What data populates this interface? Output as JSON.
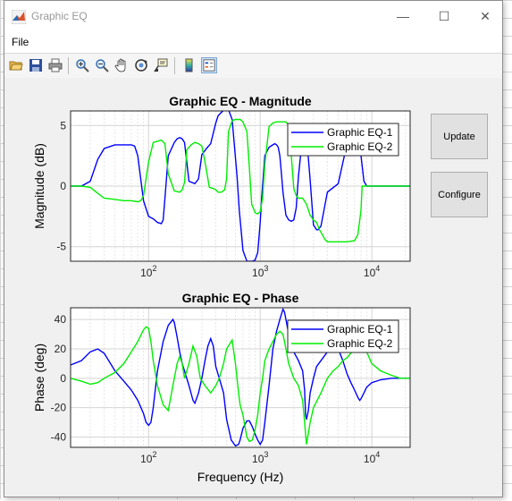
{
  "window": {
    "title": "Graphic EQ",
    "minimize": "—",
    "maximize": "☐",
    "close": "✕"
  },
  "menu": {
    "file": "File"
  },
  "toolbar": {
    "icons": [
      "open-icon",
      "save-icon",
      "print-icon",
      "zoom-in-icon",
      "zoom-out-icon",
      "pan-icon",
      "rotate-icon",
      "data-cursor-icon",
      "colorbar-icon",
      "legend-icon"
    ]
  },
  "buttons": {
    "update": "Update",
    "configure": "Configure"
  },
  "colors": {
    "series1": "#0000ff",
    "series2": "#00ee00"
  },
  "chart_data": [
    {
      "type": "line",
      "title": "Graphic EQ - Magnitude",
      "xlabel": "",
      "ylabel": "Magnitude (dB)",
      "xscale": "log",
      "xlim": [
        20,
        22050
      ],
      "ylim": [
        -6.2,
        6.2
      ],
      "xticks": [
        {
          "v": 100,
          "base": "10",
          "exp": "2"
        },
        {
          "v": 1000,
          "base": "10",
          "exp": "3"
        },
        {
          "v": 10000,
          "base": "10",
          "exp": "4"
        }
      ],
      "yticks": [
        {
          "v": 5,
          "label": "5"
        },
        {
          "v": 0,
          "label": "0"
        },
        {
          "v": -5,
          "label": "-5"
        }
      ],
      "grid": true,
      "legend": "top-right",
      "series": [
        {
          "name": "Graphic EQ-1",
          "x": [
            20,
            25,
            30,
            35,
            40,
            50,
            60,
            70,
            75,
            80,
            90,
            100,
            105,
            110,
            120,
            130,
            135,
            140,
            150,
            170,
            180,
            190,
            200,
            210,
            230,
            260,
            280,
            300,
            330,
            360,
            400,
            420,
            450,
            480,
            500,
            520,
            560,
            620,
            650,
            700,
            760,
            800,
            850,
            900,
            950,
            1000,
            1030,
            1100,
            1200,
            1300,
            1350,
            1400,
            1450,
            1500,
            1550,
            1600,
            1700,
            1800,
            1900,
            2000,
            2100,
            2200,
            2400,
            2500,
            2600,
            2800,
            3000,
            3200,
            3300,
            3500,
            4000,
            5000,
            6000,
            7000,
            7500,
            8000,
            8500,
            9000,
            10000,
            12000,
            15000,
            22050
          ],
          "y": [
            0,
            0,
            0.4,
            2.2,
            3.1,
            3.4,
            3.4,
            3.4,
            3.3,
            2.5,
            -1.2,
            -2.5,
            -2.6,
            -2.7,
            -3.0,
            -3.1,
            -2.8,
            -1.0,
            2.5,
            3.6,
            3.9,
            4.0,
            3.9,
            3.6,
            0.4,
            0.2,
            0.6,
            2.6,
            3.1,
            3.5,
            5.2,
            5.8,
            6.1,
            6.3,
            6.3,
            6.3,
            5.5,
            0.8,
            -2.0,
            -5.3,
            -6.2,
            -6.2,
            -6.2,
            -6.1,
            -5.5,
            -3.0,
            -1.0,
            2.5,
            3.2,
            3.4,
            3.5,
            3.4,
            3.2,
            2.5,
            1.0,
            -0.5,
            -2.4,
            -2.8,
            -2.9,
            -2.8,
            -1.8,
            0.8,
            4.2,
            4.6,
            4.2,
            0.5,
            -3.2,
            -3.6,
            -3.6,
            -3.3,
            -0.5,
            0.2,
            3.5,
            3.8,
            3.6,
            2.5,
            0.4,
            0,
            0,
            0,
            0,
            0
          ]
        },
        {
          "name": "Graphic EQ-2",
          "x": [
            20,
            25,
            30,
            35,
            40,
            50,
            60,
            70,
            80,
            85,
            90,
            100,
            110,
            120,
            130,
            140,
            150,
            170,
            190,
            200,
            210,
            220,
            240,
            260,
            280,
            300,
            320,
            350,
            380,
            400,
            420,
            450,
            480,
            500,
            520,
            560,
            600,
            640,
            660,
            700,
            760,
            800,
            840,
            900,
            950,
            1000,
            1050,
            1100,
            1200,
            1300,
            1400,
            1500,
            1600,
            1700,
            1800,
            1900,
            2000,
            2100,
            2200,
            2300,
            2400,
            2600,
            2800,
            3000,
            3200,
            3400,
            3600,
            3800,
            4000,
            5000,
            6000,
            7000,
            7500,
            8000,
            8200,
            8500,
            9000,
            10000,
            12000,
            15000,
            22050
          ],
          "y": [
            0,
            0,
            -0.1,
            -0.6,
            -1.0,
            -1.1,
            -1.2,
            -1.2,
            -1.3,
            -1.2,
            -0.8,
            2.0,
            3.6,
            3.7,
            3.8,
            3.5,
            1.0,
            -0.4,
            -0.5,
            -0.3,
            0.3,
            3.0,
            3.4,
            3.6,
            3.5,
            3.3,
            2.0,
            -0.1,
            -0.2,
            -0.3,
            -0.5,
            -0.5,
            -0.3,
            0.6,
            4.5,
            5.4,
            5.5,
            5.5,
            5.5,
            5.3,
            4.5,
            1.5,
            -1.5,
            -2.2,
            -2.3,
            -2.1,
            -1.0,
            1.8,
            4.9,
            5.2,
            5.3,
            5.3,
            5.3,
            5.3,
            5.0,
            2.5,
            -0.2,
            -0.8,
            -1.0,
            -1.0,
            -1.0,
            -1.5,
            -2.4,
            -2.8,
            -3.0,
            -3.6,
            -4.0,
            -4.4,
            -4.6,
            -4.6,
            -4.6,
            -4.5,
            -4.0,
            -2.0,
            0,
            0,
            0,
            0,
            0,
            0,
            0
          ]
        }
      ]
    },
    {
      "type": "line",
      "title": "Graphic EQ - Phase",
      "xlabel": "Frequency (Hz)",
      "ylabel": "Phase (deg)",
      "xscale": "log",
      "xlim": [
        20,
        22050
      ],
      "ylim": [
        -47,
        48
      ],
      "xticks": [
        {
          "v": 100,
          "base": "10",
          "exp": "2"
        },
        {
          "v": 1000,
          "base": "10",
          "exp": "3"
        },
        {
          "v": 10000,
          "base": "10",
          "exp": "4"
        }
      ],
      "yticks": [
        {
          "v": 40,
          "label": "40"
        },
        {
          "v": 20,
          "label": "20"
        },
        {
          "v": 0,
          "label": "0"
        },
        {
          "v": -20,
          "label": "-20"
        },
        {
          "v": -40,
          "label": "-40"
        }
      ],
      "grid": true,
      "legend": "top-right",
      "series": [
        {
          "name": "Graphic EQ-1",
          "x": [
            20,
            25,
            30,
            35,
            40,
            50,
            60,
            70,
            80,
            90,
            95,
            100,
            105,
            110,
            120,
            135,
            150,
            165,
            170,
            180,
            190,
            200,
            210,
            230,
            250,
            260,
            280,
            300,
            320,
            340,
            360,
            380,
            400,
            430,
            470,
            500,
            550,
            600,
            640,
            660,
            700,
            760,
            800,
            850,
            900,
            950,
            1000,
            1050,
            1100,
            1200,
            1300,
            1400,
            1500,
            1600,
            1650,
            1700,
            1800,
            2000,
            2200,
            2400,
            2500,
            2550,
            2600,
            2700,
            2800,
            3000,
            3200,
            3500,
            4000,
            4500,
            5000,
            5500,
            6000,
            6500,
            7000,
            7500,
            7800,
            8000,
            8500,
            9000,
            10000,
            12000,
            15000,
            18000,
            22050
          ],
          "y": [
            9,
            12,
            18,
            20,
            17,
            5,
            -2,
            -8,
            -15,
            -24,
            -30,
            -32,
            -30,
            -20,
            5,
            25,
            36,
            40,
            38,
            28,
            18,
            10,
            5,
            -5,
            -15,
            -17,
            -10,
            0,
            12,
            22,
            27,
            22,
            8,
            0,
            -10,
            -28,
            -42,
            -46,
            -45,
            -42,
            -34,
            -29,
            -29,
            -33,
            -38,
            -42,
            -45,
            -42,
            -30,
            -5,
            20,
            32,
            40,
            47,
            45,
            40,
            30,
            18,
            12,
            5,
            -8,
            -25,
            -28,
            -22,
            -10,
            0,
            8,
            12,
            18,
            22,
            20,
            12,
            3,
            -3,
            -8,
            -13,
            -15,
            -14,
            -10,
            -6,
            -3,
            -1,
            0,
            0,
            0
          ]
        },
        {
          "name": "Graphic EQ-2",
          "x": [
            20,
            25,
            30,
            35,
            40,
            50,
            60,
            70,
            80,
            90,
            95,
            100,
            105,
            110,
            120,
            135,
            150,
            165,
            170,
            180,
            190,
            200,
            210,
            230,
            250,
            270,
            290,
            320,
            360,
            400,
            430,
            470,
            500,
            560,
            600,
            640,
            660,
            700,
            760,
            800,
            850,
            900,
            950,
            1000,
            1050,
            1100,
            1200,
            1300,
            1400,
            1500,
            1600,
            1650,
            1700,
            1800,
            2000,
            2200,
            2400,
            2500,
            2550,
            2600,
            2800,
            3000,
            3500,
            4000,
            4500,
            5000,
            5500,
            6000,
            7000,
            8000,
            9000,
            10000,
            12000,
            15000,
            18000,
            22050
          ],
          "y": [
            0,
            -2,
            -4,
            -3,
            0,
            4,
            10,
            18,
            25,
            33,
            35,
            34,
            25,
            12,
            -5,
            -18,
            -22,
            -5,
            0,
            10,
            15,
            10,
            0,
            10,
            22,
            15,
            0,
            -5,
            -10,
            -5,
            0,
            10,
            20,
            26,
            10,
            -10,
            -18,
            -25,
            -40,
            -43,
            -42,
            -35,
            -25,
            -10,
            0,
            12,
            20,
            25,
            30,
            32,
            30,
            25,
            20,
            10,
            0,
            -5,
            -15,
            -30,
            -38,
            -45,
            -30,
            -20,
            -10,
            0,
            5,
            8,
            12,
            14,
            20,
            25,
            18,
            10,
            5,
            2,
            0,
            0
          ]
        }
      ]
    }
  ]
}
